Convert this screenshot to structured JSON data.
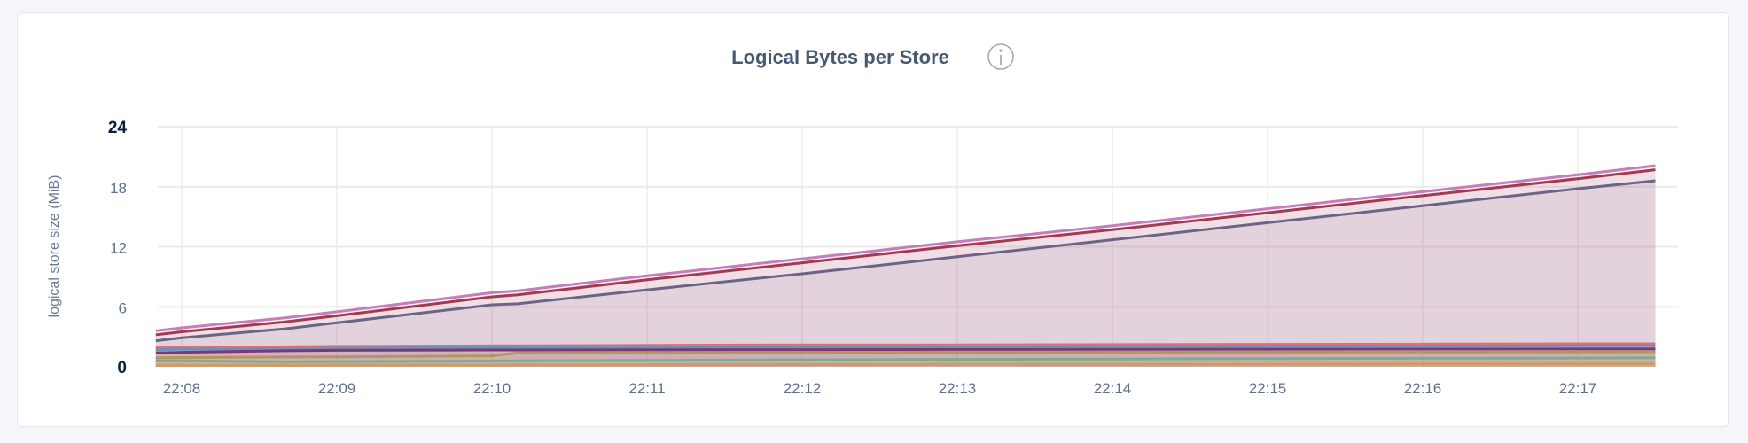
{
  "chart_data": {
    "type": "area",
    "title": "Logical Bytes per Store",
    "info_icon": "info-icon",
    "ylabel": "logical store size (MiB)",
    "xlabel": "",
    "ylim": [
      0,
      24
    ],
    "yticks": [
      "0",
      "6",
      "12",
      "18",
      "24"
    ],
    "xticks": [
      "22:08",
      "22:09",
      "22:10",
      "22:11",
      "22:12",
      "22:13",
      "22:14",
      "22:15",
      "22:16",
      "22:17"
    ],
    "grid": true,
    "x": [
      "22:07:50",
      "22:08:00",
      "22:08:40",
      "22:09:00",
      "22:10:00",
      "22:10:10",
      "22:11:00",
      "22:12:00",
      "22:13:00",
      "22:14:00",
      "22:15:00",
      "22:16:00",
      "22:17:00",
      "22:17:30"
    ],
    "series": [
      {
        "color": "#c77dba",
        "values": [
          3.6,
          3.9,
          4.9,
          5.5,
          7.4,
          7.6,
          9.1,
          10.8,
          12.5,
          14.1,
          15.8,
          17.5,
          19.2,
          20.1
        ]
      },
      {
        "color": "#a23b4f",
        "values": [
          3.2,
          3.5,
          4.5,
          5.1,
          7.0,
          7.2,
          8.7,
          10.4,
          12.1,
          13.7,
          15.4,
          17.1,
          18.8,
          19.7
        ]
      },
      {
        "color": "#6b6585",
        "values": [
          2.6,
          2.9,
          3.8,
          4.4,
          6.2,
          6.3,
          7.7,
          9.3,
          11.0,
          12.7,
          14.4,
          16.1,
          17.8,
          18.6
        ]
      },
      {
        "color": "#e0706f",
        "values": [
          1.9,
          1.95,
          2.0,
          2.05,
          2.1,
          2.1,
          2.15,
          2.2,
          2.2,
          2.22,
          2.25,
          2.27,
          2.3,
          2.3
        ]
      },
      {
        "color": "#6b8fc2",
        "values": [
          1.7,
          1.75,
          1.8,
          1.85,
          1.9,
          1.9,
          1.95,
          1.97,
          2.0,
          2.02,
          2.05,
          2.07,
          2.1,
          2.1
        ]
      },
      {
        "color": "#7b3a6e",
        "values": [
          1.4,
          1.45,
          1.6,
          1.65,
          1.68,
          1.68,
          1.7,
          1.72,
          1.74,
          1.75,
          1.76,
          1.78,
          1.8,
          1.8
        ]
      },
      {
        "color": "#b8935a",
        "values": [
          0.9,
          0.92,
          0.98,
          1.0,
          1.1,
          1.4,
          1.42,
          1.44,
          1.45,
          1.46,
          1.47,
          1.48,
          1.5,
          1.5
        ]
      },
      {
        "color": "#7fae85",
        "values": [
          0.6,
          0.6,
          0.5,
          0.52,
          0.58,
          0.6,
          0.65,
          0.7,
          0.74,
          0.78,
          0.82,
          0.85,
          0.88,
          0.9
        ]
      },
      {
        "color": "#d49a5c",
        "values": [
          0.15,
          0.15,
          0.16,
          0.17,
          0.18,
          0.19,
          0.2,
          0.22,
          0.24,
          0.25,
          0.26,
          0.28,
          0.3,
          0.3
        ]
      }
    ]
  }
}
